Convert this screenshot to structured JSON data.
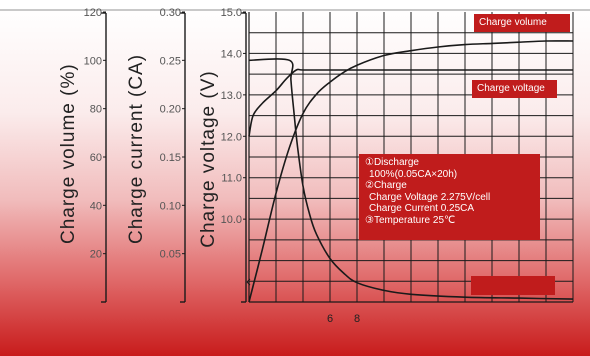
{
  "chart_data": {
    "type": "line",
    "axes": [
      {
        "title": "Charge volume (%)",
        "ticks": [
          20,
          40,
          60,
          80,
          100,
          120
        ],
        "range": [
          0,
          120
        ]
      },
      {
        "title": "Charge current (CA)",
        "ticks": [
          "0.05",
          "0.10",
          "0.15",
          "0.20",
          "0.25",
          "0.30"
        ],
        "range": [
          0,
          0.3
        ]
      },
      {
        "title": "Charge voltage (V)",
        "ticks": [
          "10.0",
          "11.0",
          "12.0",
          "13.0",
          "14.0",
          "15.0"
        ],
        "range": [
          8.0,
          15.0
        ]
      }
    ],
    "x": {
      "tick_labels": [
        "6",
        "8"
      ],
      "tick_values": [
        6,
        8
      ],
      "range": [
        0,
        24
      ],
      "grid_step": 2
    },
    "grid": true,
    "series": [
      {
        "name": "Charge volume",
        "axis": "Charge volume (%)",
        "x": [
          0,
          1,
          2,
          3,
          4,
          5,
          6,
          7,
          8,
          10,
          12,
          14,
          16,
          18,
          20,
          22,
          24
        ],
        "y": [
          0,
          22,
          45,
          64,
          78,
          86,
          91,
          95,
          98,
          102,
          104,
          105.5,
          106.5,
          107,
          107.5,
          108,
          108
        ]
      },
      {
        "name": "Charge voltage",
        "axis": "Charge voltage (V)",
        "x": [
          0,
          0.3,
          1,
          2,
          2.8,
          3.5,
          4,
          6,
          10,
          16,
          24
        ],
        "y": [
          12.0,
          12.5,
          12.8,
          13.1,
          13.4,
          13.6,
          13.6,
          13.6,
          13.6,
          13.6,
          13.6
        ]
      },
      {
        "name": "Charge current",
        "axis": "Charge current (CA)",
        "x": [
          0,
          3,
          3.1,
          3.3,
          3.6,
          4,
          4.5,
          5,
          6,
          7,
          8,
          10,
          12,
          16,
          20,
          24
        ],
        "y": [
          0.25,
          0.25,
          0.23,
          0.2,
          0.16,
          0.12,
          0.09,
          0.07,
          0.045,
          0.03,
          0.02,
          0.012,
          0.008,
          0.005,
          0.004,
          0.003
        ]
      }
    ],
    "annotations": [
      "①Discharge",
      "100%(0.05CA×20h)",
      "②Charge",
      "Charge Voltage    2.275V/cell",
      "Charge Current 0.25CA",
      "③Temperature 25℃"
    ],
    "colors": {
      "plot_line": "#1a1a1a",
      "box_fill": "#c01c1c",
      "box_text": "#ffffff",
      "bg_bottom": "#c81b1b"
    }
  }
}
